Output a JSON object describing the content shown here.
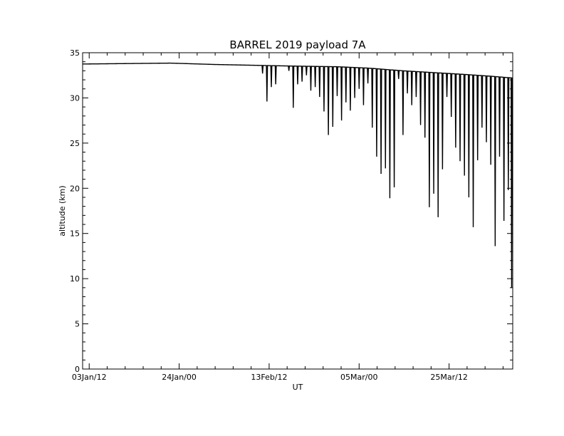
{
  "chart_data": {
    "type": "line",
    "title": "BARREL 2019 payload 7A",
    "xlabel": "UT",
    "ylabel": "altitude (km)",
    "ylim": [
      0,
      35
    ],
    "y_ticks": [
      0,
      5,
      10,
      15,
      20,
      25,
      30,
      35
    ],
    "x_axis": {
      "unit": "days",
      "range_start": "2019-01-01T12:00",
      "range_end": "2019-04-09T12:00",
      "tick_labels": [
        "03Jan/12",
        "24Jan/00",
        "13Feb/12",
        "05Mar/00",
        "25Mar/12"
      ]
    },
    "grid": false,
    "series": [
      {
        "color": "#000000",
        "baseline": [
          [
            "2019-01-01T12:00",
            33.75
          ],
          [
            "2019-01-11T12:00",
            33.8
          ],
          [
            "2019-01-21T12:00",
            33.85
          ],
          [
            "2019-01-31T12:00",
            33.7
          ],
          [
            "2019-02-10T12:00",
            33.6
          ],
          [
            "2019-02-15T12:00",
            33.55
          ],
          [
            "2019-02-21T12:00",
            33.5
          ],
          [
            "2019-02-28T12:00",
            33.45
          ],
          [
            "2019-03-07T12:00",
            33.3
          ],
          [
            "2019-03-15T12:00",
            33.0
          ],
          [
            "2019-03-22T12:00",
            32.8
          ],
          [
            "2019-03-29T12:00",
            32.6
          ],
          [
            "2019-04-04T12:00",
            32.4
          ],
          [
            "2019-04-09T12:00",
            32.2
          ]
        ],
        "dips": [
          [
            "2019-02-11T12:00",
            32.7
          ],
          [
            "2019-02-12T12:00",
            29.6
          ],
          [
            "2019-02-13T12:00",
            31.2
          ],
          [
            "2019-02-14T12:00",
            31.5
          ],
          [
            "2019-02-17T12:00",
            33.0
          ],
          [
            "2019-02-18T12:00",
            28.9
          ],
          [
            "2019-02-19T12:00",
            31.5
          ],
          [
            "2019-02-20T12:00",
            31.8
          ],
          [
            "2019-02-21T12:00",
            32.5
          ],
          [
            "2019-02-22T12:00",
            30.8
          ],
          [
            "2019-02-23T12:00",
            31.2
          ],
          [
            "2019-02-24T12:00",
            30.1
          ],
          [
            "2019-02-25T12:00",
            28.5
          ],
          [
            "2019-02-26T12:00",
            25.9
          ],
          [
            "2019-02-27T12:00",
            26.8
          ],
          [
            "2019-02-28T12:00",
            30.2
          ],
          [
            "2019-03-01T12:00",
            27.5
          ],
          [
            "2019-03-02T12:00",
            29.5
          ],
          [
            "2019-03-03T12:00",
            28.6
          ],
          [
            "2019-03-04T12:00",
            30.0
          ],
          [
            "2019-03-05T12:00",
            31.0
          ],
          [
            "2019-03-06T12:00",
            29.2
          ],
          [
            "2019-03-07T12:00",
            31.6
          ],
          [
            "2019-03-08T12:00",
            26.7
          ],
          [
            "2019-03-09T12:00",
            23.5
          ],
          [
            "2019-03-10T12:00",
            21.6
          ],
          [
            "2019-03-11T12:00",
            22.2
          ],
          [
            "2019-03-12T12:00",
            18.9
          ],
          [
            "2019-03-13T12:00",
            20.1
          ],
          [
            "2019-03-14T12:00",
            32.1
          ],
          [
            "2019-03-15T12:00",
            25.9
          ],
          [
            "2019-03-16T12:00",
            30.5
          ],
          [
            "2019-03-17T12:00",
            29.2
          ],
          [
            "2019-03-18T12:00",
            30.1
          ],
          [
            "2019-03-19T12:00",
            27.0
          ],
          [
            "2019-03-20T12:00",
            25.6
          ],
          [
            "2019-03-21T12:00",
            17.9
          ],
          [
            "2019-03-22T12:00",
            19.4
          ],
          [
            "2019-03-23T12:00",
            16.8
          ],
          [
            "2019-03-24T12:00",
            22.1
          ],
          [
            "2019-03-25T12:00",
            30.1
          ],
          [
            "2019-03-26T12:00",
            27.9
          ],
          [
            "2019-03-27T12:00",
            24.5
          ],
          [
            "2019-03-28T12:00",
            23.0
          ],
          [
            "2019-03-29T12:00",
            21.4
          ],
          [
            "2019-03-30T12:00",
            19.0
          ],
          [
            "2019-03-31T12:00",
            15.7
          ],
          [
            "2019-04-01T12:00",
            23.1
          ],
          [
            "2019-04-02T12:00",
            26.7
          ],
          [
            "2019-04-03T12:00",
            25.1
          ],
          [
            "2019-04-04T12:00",
            22.6
          ],
          [
            "2019-04-05T12:00",
            13.6
          ],
          [
            "2019-04-06T12:00",
            23.5
          ],
          [
            "2019-04-07T12:00",
            16.4
          ],
          [
            "2019-04-08T12:00",
            19.8
          ],
          [
            "2019-04-09T06:00",
            9.0
          ]
        ]
      }
    ]
  }
}
